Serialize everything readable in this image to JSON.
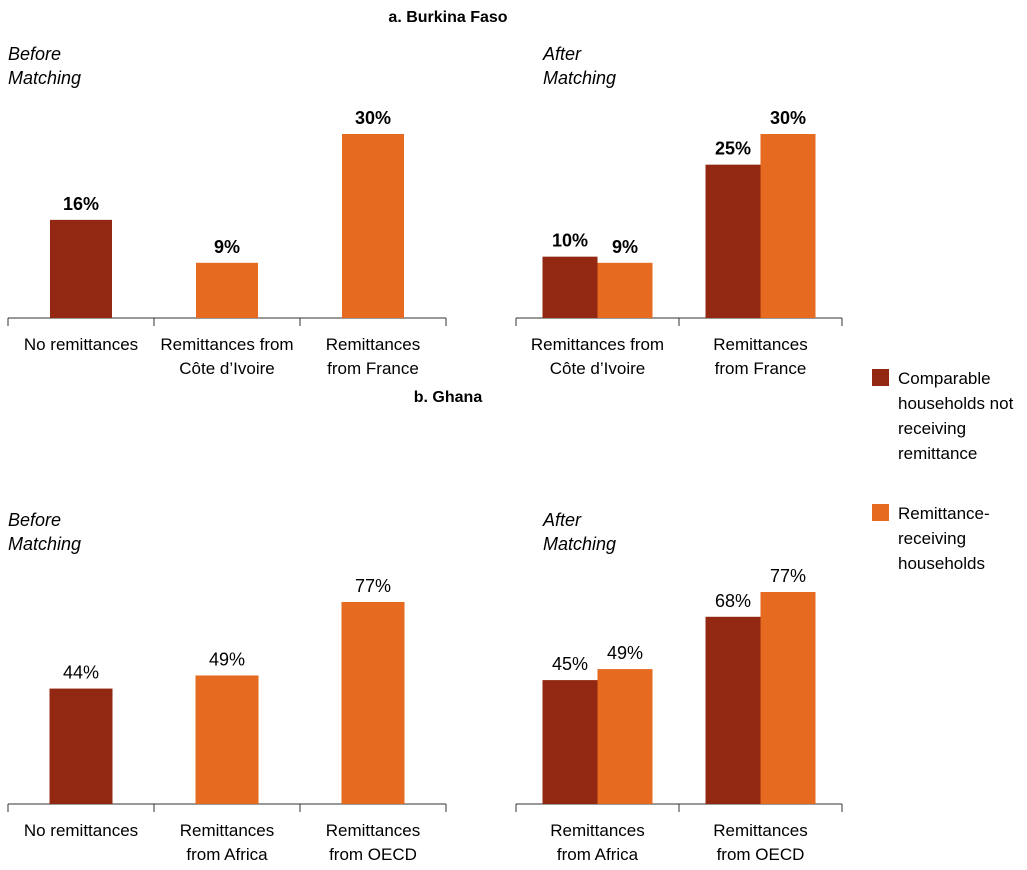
{
  "colors": {
    "not_receiving": "#922712",
    "receiving": "#E66A1F",
    "axis": "#333333"
  },
  "legend": {
    "items": [
      {
        "label_lines": [
          "Comparable",
          "households not",
          "receiving",
          "remittance"
        ],
        "color": "#922712"
      },
      {
        "label_lines": [
          "Remittance-",
          "receiving",
          "households"
        ],
        "color": "#E66A1F"
      }
    ]
  },
  "panels": [
    {
      "title": "a. Burkina Faso"
    },
    {
      "title": "b. Ghana"
    }
  ],
  "chart_data": [
    {
      "type": "bar",
      "panel": "a. Burkina Faso",
      "subtitle_lines": [
        "Before",
        "Matching"
      ],
      "categories": [
        [
          "No remittances"
        ],
        [
          "Remittances from",
          "Côte d’Ivoire"
        ],
        [
          "Remittances",
          "from France"
        ]
      ],
      "values": [
        16,
        9,
        30
      ],
      "bar_colors": [
        "#922712",
        "#E66A1F",
        "#E66A1F"
      ],
      "value_labels": [
        "16%",
        "9%",
        "30%"
      ],
      "label_bold": true,
      "ylim": [
        0,
        30
      ]
    },
    {
      "type": "bar",
      "panel": "a. Burkina Faso",
      "subtitle_lines": [
        "After",
        "Matching"
      ],
      "categories": [
        [
          "Remittances from",
          "Côte d’Ivoire"
        ],
        [
          "Remittances",
          "from France"
        ]
      ],
      "series": [
        {
          "values": [
            10,
            25
          ],
          "value_labels": [
            "10%",
            "25%"
          ],
          "color": "#922712"
        },
        {
          "values": [
            9,
            30
          ],
          "value_labels": [
            "9%",
            "30%"
          ],
          "color": "#E66A1F"
        }
      ],
      "label_bold": true,
      "ylim": [
        0,
        30
      ]
    },
    {
      "type": "bar",
      "panel": "b. Ghana",
      "subtitle_lines": [
        "Before",
        "Matching"
      ],
      "categories": [
        [
          "No remittances"
        ],
        [
          "Remittances",
          "from Africa"
        ],
        [
          "Remittances",
          "from OECD"
        ]
      ],
      "values": [
        44,
        49,
        77
      ],
      "bar_colors": [
        "#922712",
        "#E66A1F",
        "#E66A1F"
      ],
      "value_labels": [
        "44%",
        "49%",
        "77%"
      ],
      "label_bold": false,
      "ylim": [
        0,
        77
      ]
    },
    {
      "type": "bar",
      "panel": "b. Ghana",
      "subtitle_lines": [
        "After",
        "Matching"
      ],
      "categories": [
        [
          "Remittances",
          "from Africa"
        ],
        [
          "Remittances",
          "from OECD"
        ]
      ],
      "series": [
        {
          "values": [
            45,
            68
          ],
          "value_labels": [
            "45%",
            "68%"
          ],
          "color": "#922712"
        },
        {
          "values": [
            49,
            77
          ],
          "value_labels": [
            "49%",
            "77%"
          ],
          "color": "#E66A1F"
        }
      ],
      "label_bold": false,
      "ylim": [
        0,
        77
      ]
    }
  ]
}
